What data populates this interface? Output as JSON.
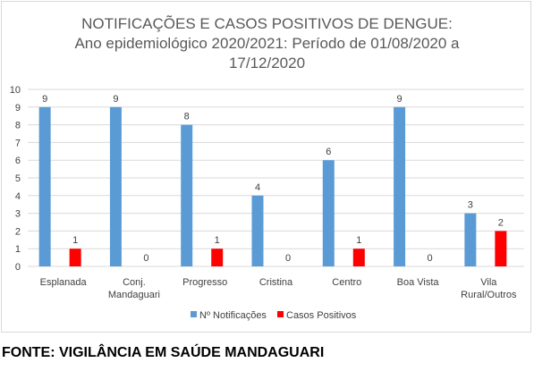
{
  "chart_data": {
    "type": "bar",
    "title_lines": [
      "NOTIFICAÇÕES E CASOS POSITIVOS DE DENGUE:",
      "Ano epidemiológico 2020/2021: Período de 01/08/2020 a",
      "17/12/2020"
    ],
    "categories": [
      [
        "Esplanada"
      ],
      [
        "Conj.",
        "Mandaguari"
      ],
      [
        "Progresso"
      ],
      [
        "Cristina"
      ],
      [
        "Centro"
      ],
      [
        "Boa Vista"
      ],
      [
        "Vila",
        "Rural/Outros"
      ]
    ],
    "series": [
      {
        "name": "Nº Notificações",
        "color": "#5b9bd5",
        "values": [
          9,
          9,
          8,
          4,
          6,
          9,
          3
        ]
      },
      {
        "name": "Casos Positivos",
        "color": "#ff0000",
        "values": [
          1,
          0,
          1,
          0,
          1,
          0,
          2
        ]
      }
    ],
    "ylim": [
      0,
      10
    ],
    "yticks": [
      0,
      1,
      2,
      3,
      4,
      5,
      6,
      7,
      8,
      9,
      10
    ],
    "grid": true,
    "legend_position": "bottom",
    "data_labels": true
  },
  "source_text": "FONTE: VIGILÂNCIA EM SAÚDE MANDAGUARI"
}
